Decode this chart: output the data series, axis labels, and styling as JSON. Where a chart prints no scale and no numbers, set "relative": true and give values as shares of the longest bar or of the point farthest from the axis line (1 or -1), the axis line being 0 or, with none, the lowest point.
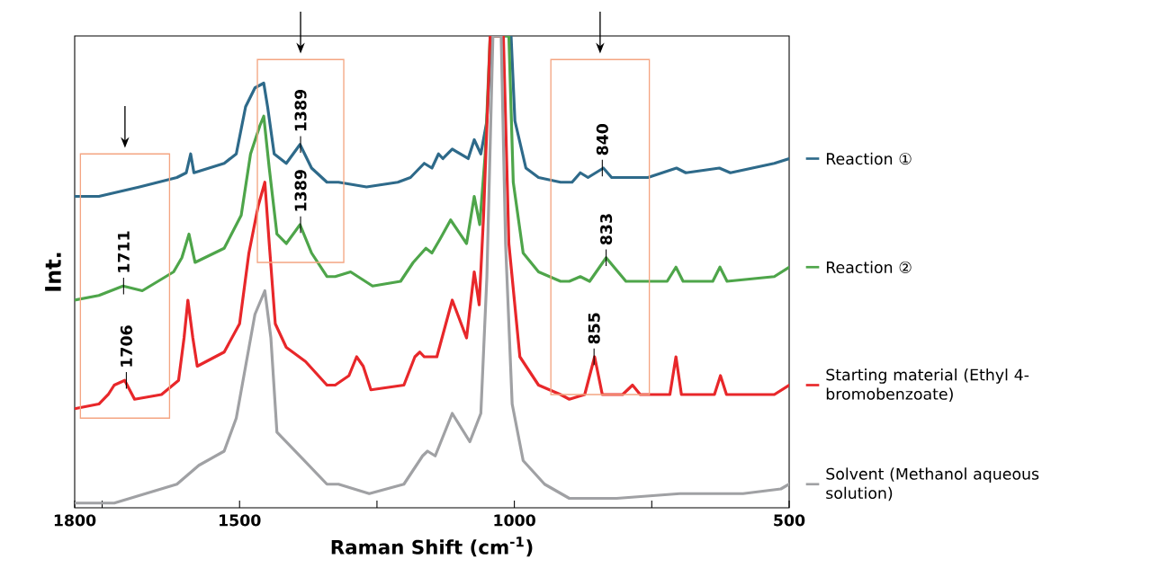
{
  "chart_data": {
    "type": "line",
    "relative": true,
    "xlabel": "Raman Shift (cm$^{-1}$)",
    "ylabel": "Int.",
    "xlim": [
      1800,
      500
    ],
    "xticks": [
      1800,
      {
        "value": 1750,
        "label": null
      },
      1500,
      {
        "value": 1250,
        "label": null
      },
      1000,
      {
        "value": 750,
        "label": null
      },
      500
    ],
    "legend": "right",
    "series": [
      {
        "name": "Reaction ①",
        "color": "#2e6a8a",
        "x": [
          1800,
          1756,
          1682,
          1614,
          1597,
          1589,
          1583,
          1528,
          1506,
          1489,
          1472,
          1456,
          1449,
          1437,
          1415,
          1390,
          1369,
          1341,
          1320,
          1269,
          1212,
          1189,
          1164,
          1150,
          1138,
          1130,
          1113,
          1084,
          1073,
          1061,
          1050,
          1042,
          1006,
          999,
          979,
          956,
          916,
          895,
          880,
          866,
          838,
          823,
          757,
          705,
          688,
          627,
          607,
          527,
          500
        ],
        "values": [
          0.66,
          0.66,
          0.68,
          0.7,
          0.71,
          0.75,
          0.71,
          0.73,
          0.75,
          0.85,
          0.89,
          0.9,
          0.85,
          0.75,
          0.73,
          0.77,
          0.72,
          0.69,
          0.69,
          0.68,
          0.69,
          0.7,
          0.73,
          0.72,
          0.75,
          0.74,
          0.76,
          0.74,
          0.78,
          0.75,
          0.82,
          1.0,
          1.0,
          0.82,
          0.72,
          0.7,
          0.69,
          0.69,
          0.71,
          0.7,
          0.72,
          0.7,
          0.7,
          0.72,
          0.71,
          0.72,
          0.71,
          0.73,
          0.74
        ]
      },
      {
        "name": "Reaction ②",
        "color": "#4ea54a",
        "x": [
          1800,
          1756,
          1712,
          1677,
          1620,
          1605,
          1592,
          1581,
          1528,
          1497,
          1480,
          1463,
          1456,
          1446,
          1432,
          1415,
          1390,
          1369,
          1341,
          1326,
          1298,
          1258,
          1207,
          1184,
          1161,
          1150,
          1135,
          1116,
          1087,
          1073,
          1063,
          1053,
          1044,
          1010,
          1002,
          984,
          956,
          916,
          900,
          880,
          863,
          833,
          797,
          757,
          722,
          706,
          693,
          639,
          626,
          613,
          527,
          500
        ],
        "values": [
          0.44,
          0.45,
          0.47,
          0.46,
          0.5,
          0.53,
          0.58,
          0.52,
          0.55,
          0.62,
          0.75,
          0.81,
          0.83,
          0.72,
          0.58,
          0.56,
          0.6,
          0.54,
          0.49,
          0.49,
          0.5,
          0.47,
          0.48,
          0.52,
          0.55,
          0.54,
          0.57,
          0.61,
          0.56,
          0.66,
          0.6,
          0.75,
          1.0,
          1.0,
          0.69,
          0.54,
          0.5,
          0.48,
          0.48,
          0.49,
          0.48,
          0.53,
          0.48,
          0.48,
          0.48,
          0.51,
          0.48,
          0.48,
          0.51,
          0.48,
          0.49,
          0.51
        ]
      },
      {
        "name": "Starting material (Ethyl 4-bromobenzoate)",
        "color": "#e8272a",
        "x": [
          1800,
          1756,
          1739,
          1728,
          1709,
          1691,
          1642,
          1611,
          1601,
          1594,
          1585,
          1577,
          1528,
          1500,
          1483,
          1466,
          1454,
          1446,
          1435,
          1415,
          1380,
          1341,
          1326,
          1301,
          1287,
          1275,
          1261,
          1201,
          1181,
          1172,
          1164,
          1141,
          1113,
          1087,
          1073,
          1064,
          1056,
          1044,
          1020,
          1010,
          990,
          956,
          916,
          900,
          872,
          854,
          840,
          803,
          785,
          771,
          717,
          706,
          696,
          636,
          625,
          614,
          527,
          500
        ],
        "values": [
          0.21,
          0.22,
          0.24,
          0.26,
          0.27,
          0.23,
          0.24,
          0.27,
          0.36,
          0.44,
          0.36,
          0.3,
          0.33,
          0.39,
          0.54,
          0.64,
          0.69,
          0.56,
          0.39,
          0.34,
          0.31,
          0.26,
          0.26,
          0.28,
          0.32,
          0.3,
          0.25,
          0.26,
          0.32,
          0.33,
          0.32,
          0.32,
          0.44,
          0.36,
          0.5,
          0.43,
          0.62,
          1.0,
          1.0,
          0.56,
          0.32,
          0.26,
          0.24,
          0.23,
          0.24,
          0.32,
          0.24,
          0.24,
          0.26,
          0.24,
          0.24,
          0.32,
          0.24,
          0.24,
          0.28,
          0.24,
          0.24,
          0.26
        ]
      },
      {
        "name": "Solvent (Methanol aqueous solution)",
        "color": "#a0a1a4",
        "x": [
          1800,
          1728,
          1671,
          1614,
          1574,
          1528,
          1506,
          1489,
          1472,
          1454,
          1443,
          1432,
          1415,
          1341,
          1320,
          1264,
          1201,
          1167,
          1158,
          1144,
          1113,
          1081,
          1061,
          1050,
          1039,
          1024,
          1016,
          1004,
          984,
          945,
          900,
          814,
          699,
          584,
          515,
          500
        ],
        "values": [
          0.01,
          0.01,
          0.03,
          0.05,
          0.09,
          0.12,
          0.19,
          0.3,
          0.41,
          0.46,
          0.36,
          0.16,
          0.14,
          0.05,
          0.05,
          0.03,
          0.05,
          0.11,
          0.12,
          0.11,
          0.2,
          0.14,
          0.2,
          0.49,
          1.0,
          1.0,
          0.56,
          0.22,
          0.1,
          0.05,
          0.02,
          0.02,
          0.03,
          0.03,
          0.04,
          0.05
        ]
      }
    ],
    "annotations": [
      {
        "text": "1711",
        "x": 1711,
        "y": 0.47
      },
      {
        "text": "1706",
        "x": 1706,
        "y": 0.27
      },
      {
        "text": "1389",
        "x": 1389,
        "y": 0.77
      },
      {
        "text": "1389",
        "x": 1389,
        "y": 0.6
      },
      {
        "text": "840",
        "x": 840,
        "y": 0.72
      },
      {
        "text": "833",
        "x": 833,
        "y": 0.53
      },
      {
        "text": "855",
        "x": 855,
        "y": 0.32
      }
    ]
  }
}
